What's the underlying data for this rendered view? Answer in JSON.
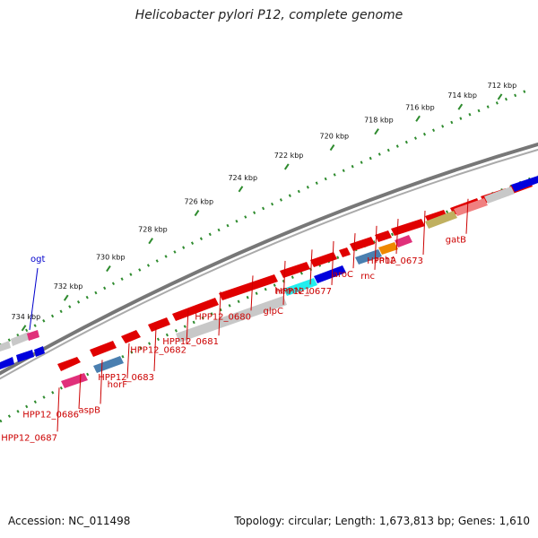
{
  "title": "Helicobacter pylori P12, complete genome",
  "footer": {
    "accession": "Accession: NC_011498",
    "topology": "Topology: circular; Length: 1,673,813 bp; Genes: 1,610"
  },
  "ruler": {
    "ticks": [
      {
        "label": "712 kbp",
        "t": 0.945
      },
      {
        "label": "714 kbp",
        "t": 0.87
      },
      {
        "label": "716 kbp",
        "t": 0.79
      },
      {
        "label": "718 kbp",
        "t": 0.712
      },
      {
        "label": "720 kbp",
        "t": 0.628
      },
      {
        "label": "722 kbp",
        "t": 0.542
      },
      {
        "label": "724 kbp",
        "t": 0.455
      },
      {
        "label": "726 kbp",
        "t": 0.372
      },
      {
        "label": "728 kbp",
        "t": 0.285
      },
      {
        "label": "730 kbp",
        "t": 0.205
      },
      {
        "label": "732 kbp",
        "t": 0.125
      },
      {
        "label": "734 kbp",
        "t": 0.045
      }
    ]
  },
  "features": [
    {
      "name": "gatB",
      "t": 0.87,
      "color": "#cc0000"
    },
    {
      "name": "HPP12_0673",
      "t": 0.79,
      "color": "#cc0000"
    },
    {
      "name": "rnhA",
      "t": 0.74,
      "color": "#cc0000"
    },
    {
      "name": "rnc",
      "t": 0.7,
      "color": "#cc0000"
    },
    {
      "name": "aroC",
      "t": 0.66,
      "color": "#cc0000"
    },
    {
      "name": "HPP12_0677",
      "t": 0.62,
      "color": "#cc0000"
    },
    {
      "name": "hemN-1",
      "t": 0.58,
      "color": "#cc0000"
    },
    {
      "name": "glpC",
      "t": 0.53,
      "color": "#cc0000"
    },
    {
      "name": "HPP12_0680",
      "t": 0.47,
      "color": "#cc0000"
    },
    {
      "name": "HPP12_0681",
      "t": 0.41,
      "color": "#cc0000"
    },
    {
      "name": "HPP12_0682",
      "t": 0.35,
      "color": "#cc0000"
    },
    {
      "name": "HPP12_0683",
      "t": 0.29,
      "color": "#cc0000"
    },
    {
      "name": "horF",
      "t": 0.24,
      "color": "#cc0000"
    },
    {
      "name": "aspB",
      "t": 0.19,
      "color": "#cc0000"
    },
    {
      "name": "HPP12_0686",
      "t": 0.15,
      "color": "#cc0000"
    },
    {
      "name": "HPP12_0687",
      "t": 0.11,
      "color": "#cc0000"
    },
    {
      "name": "ogt",
      "t": 0.05,
      "color": "#0000cc"
    }
  ]
}
